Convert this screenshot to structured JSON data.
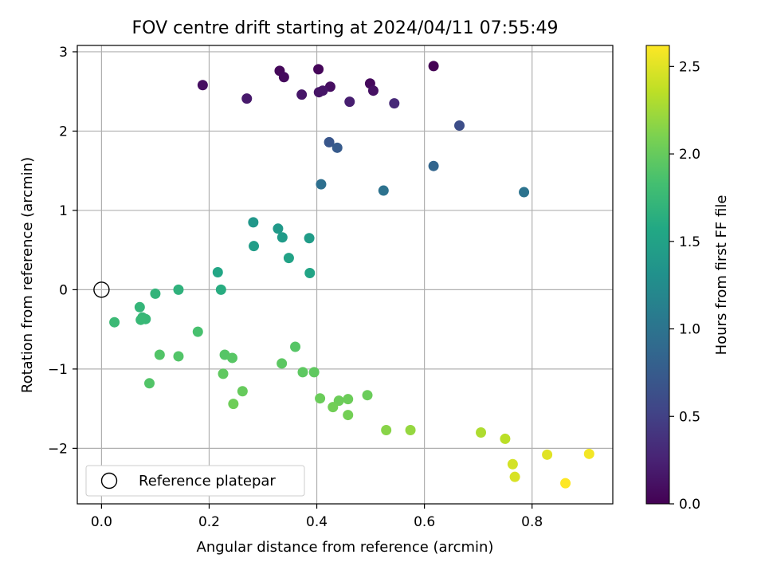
{
  "chart_data": {
    "type": "scatter",
    "title": "FOV centre drift starting at 2024/04/11 07:55:49",
    "xlabel": "Angular distance from reference (arcmin)",
    "ylabel": "Rotation from reference (arcmin)",
    "xlim": [
      -0.045,
      0.95
    ],
    "ylim": [
      -2.7,
      3.08
    ],
    "xticks": [
      0.0,
      0.2,
      0.4,
      0.6,
      0.8
    ],
    "xtick_labels": [
      "0.0",
      "0.2",
      "0.4",
      "0.6",
      "0.8"
    ],
    "yticks": [
      -2,
      -1,
      0,
      1,
      2,
      3
    ],
    "ytick_labels": [
      "−2",
      "−1",
      "0",
      "1",
      "2",
      "3"
    ],
    "grid": true,
    "legend": {
      "position": "lower-left",
      "entries": [
        "Reference platepar"
      ]
    },
    "reference_point": {
      "x": 0.0,
      "y": 0.0,
      "marker": "open-circle"
    },
    "colorbar": {
      "label": "Hours from first FF file",
      "colormap": "viridis",
      "range": [
        0.0,
        2.62
      ],
      "ticks": [
        0.0,
        0.5,
        1.0,
        1.5,
        2.0,
        2.5
      ],
      "tick_labels": [
        "0.0",
        "0.5",
        "1.0",
        "1.5",
        "2.0",
        "2.5"
      ]
    },
    "points": [
      {
        "x": 0.617,
        "y": 2.82,
        "c": 0.0
      },
      {
        "x": 0.403,
        "y": 2.78,
        "c": 0.04
      },
      {
        "x": 0.331,
        "y": 2.76,
        "c": 0.05
      },
      {
        "x": 0.339,
        "y": 2.68,
        "c": 0.07
      },
      {
        "x": 0.499,
        "y": 2.6,
        "c": 0.06
      },
      {
        "x": 0.188,
        "y": 2.58,
        "c": 0.1
      },
      {
        "x": 0.425,
        "y": 2.56,
        "c": 0.1
      },
      {
        "x": 0.505,
        "y": 2.51,
        "c": 0.12
      },
      {
        "x": 0.404,
        "y": 2.49,
        "c": 0.14
      },
      {
        "x": 0.411,
        "y": 2.51,
        "c": 0.15
      },
      {
        "x": 0.372,
        "y": 2.46,
        "c": 0.16
      },
      {
        "x": 0.27,
        "y": 2.41,
        "c": 0.18
      },
      {
        "x": 0.461,
        "y": 2.37,
        "c": 0.22
      },
      {
        "x": 0.544,
        "y": 2.35,
        "c": 0.3
      },
      {
        "x": 0.665,
        "y": 2.07,
        "c": 0.62
      },
      {
        "x": 0.423,
        "y": 1.86,
        "c": 0.7
      },
      {
        "x": 0.438,
        "y": 1.79,
        "c": 0.75
      },
      {
        "x": 0.617,
        "y": 1.56,
        "c": 0.85
      },
      {
        "x": 0.408,
        "y": 1.33,
        "c": 0.95
      },
      {
        "x": 0.524,
        "y": 1.25,
        "c": 0.98
      },
      {
        "x": 0.785,
        "y": 1.23,
        "c": 1.0
      },
      {
        "x": 0.282,
        "y": 0.85,
        "c": 1.38
      },
      {
        "x": 0.328,
        "y": 0.77,
        "c": 1.4
      },
      {
        "x": 0.336,
        "y": 0.66,
        "c": 1.42
      },
      {
        "x": 0.386,
        "y": 0.65,
        "c": 1.43
      },
      {
        "x": 0.283,
        "y": 0.55,
        "c": 1.45
      },
      {
        "x": 0.348,
        "y": 0.4,
        "c": 1.5
      },
      {
        "x": 0.216,
        "y": 0.22,
        "c": 1.55
      },
      {
        "x": 0.387,
        "y": 0.21,
        "c": 1.53
      },
      {
        "x": 0.222,
        "y": 0.0,
        "c": 1.62
      },
      {
        "x": 0.143,
        "y": 0.0,
        "c": 1.68
      },
      {
        "x": 0.1,
        "y": -0.05,
        "c": 1.7
      },
      {
        "x": 0.071,
        "y": -0.22,
        "c": 1.72
      },
      {
        "x": 0.076,
        "y": -0.35,
        "c": 1.73
      },
      {
        "x": 0.082,
        "y": -0.37,
        "c": 1.74
      },
      {
        "x": 0.073,
        "y": -0.38,
        "c": 1.75
      },
      {
        "x": 0.024,
        "y": -0.41,
        "c": 1.77
      },
      {
        "x": 0.179,
        "y": -0.53,
        "c": 1.85
      },
      {
        "x": 0.36,
        "y": -0.72,
        "c": 1.92
      },
      {
        "x": 0.108,
        "y": -0.82,
        "c": 1.9
      },
      {
        "x": 0.143,
        "y": -0.84,
        "c": 1.9
      },
      {
        "x": 0.229,
        "y": -0.82,
        "c": 1.92
      },
      {
        "x": 0.243,
        "y": -0.86,
        "c": 1.93
      },
      {
        "x": 0.335,
        "y": -0.93,
        "c": 1.95
      },
      {
        "x": 0.374,
        "y": -1.04,
        "c": 1.96
      },
      {
        "x": 0.395,
        "y": -1.04,
        "c": 1.97
      },
      {
        "x": 0.226,
        "y": -1.06,
        "c": 1.97
      },
      {
        "x": 0.089,
        "y": -1.18,
        "c": 1.9
      },
      {
        "x": 0.262,
        "y": -1.28,
        "c": 2.0
      },
      {
        "x": 0.494,
        "y": -1.33,
        "c": 2.02
      },
      {
        "x": 0.406,
        "y": -1.37,
        "c": 2.02
      },
      {
        "x": 0.458,
        "y": -1.38,
        "c": 2.03
      },
      {
        "x": 0.441,
        "y": -1.4,
        "c": 2.03
      },
      {
        "x": 0.245,
        "y": -1.44,
        "c": 2.04
      },
      {
        "x": 0.43,
        "y": -1.48,
        "c": 2.05
      },
      {
        "x": 0.458,
        "y": -1.58,
        "c": 2.06
      },
      {
        "x": 0.529,
        "y": -1.77,
        "c": 2.15
      },
      {
        "x": 0.574,
        "y": -1.77,
        "c": 2.2
      },
      {
        "x": 0.705,
        "y": -1.8,
        "c": 2.3
      },
      {
        "x": 0.75,
        "y": -1.88,
        "c": 2.35
      },
      {
        "x": 0.764,
        "y": -2.2,
        "c": 2.45
      },
      {
        "x": 0.768,
        "y": -2.36,
        "c": 2.47
      },
      {
        "x": 0.828,
        "y": -2.08,
        "c": 2.5
      },
      {
        "x": 0.906,
        "y": -2.07,
        "c": 2.58
      },
      {
        "x": 0.862,
        "y": -2.44,
        "c": 2.62
      }
    ]
  }
}
